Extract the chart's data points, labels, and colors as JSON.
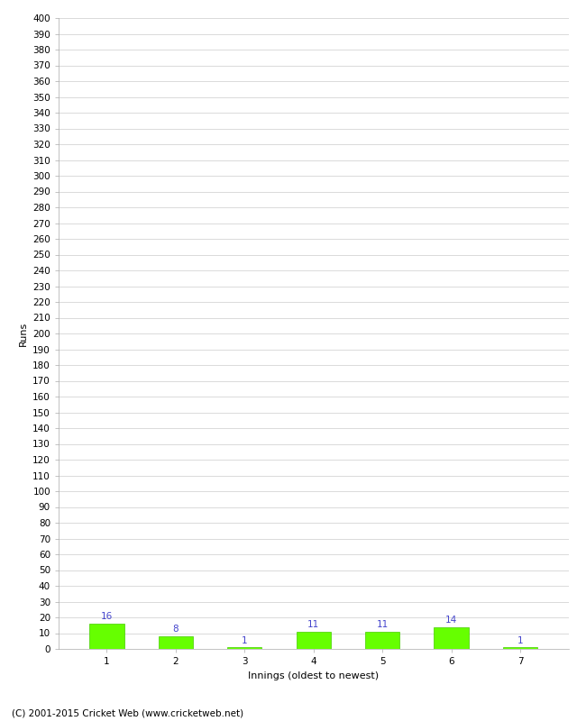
{
  "categories": [
    1,
    2,
    3,
    4,
    5,
    6,
    7
  ],
  "values": [
    16,
    8,
    1,
    11,
    11,
    14,
    1
  ],
  "bar_color": "#66ff00",
  "bar_edge_color": "#44cc00",
  "value_label_color": "#4444cc",
  "xlabel": "Innings (oldest to newest)",
  "ylabel": "Runs",
  "ylim": [
    0,
    400
  ],
  "background_color": "#ffffff",
  "grid_color": "#cccccc",
  "footer_text": "(C) 2001-2015 Cricket Web (www.cricketweb.net)",
  "value_fontsize": 7.5,
  "axis_label_fontsize": 8,
  "tick_label_fontsize": 7.5,
  "footer_fontsize": 7.5
}
